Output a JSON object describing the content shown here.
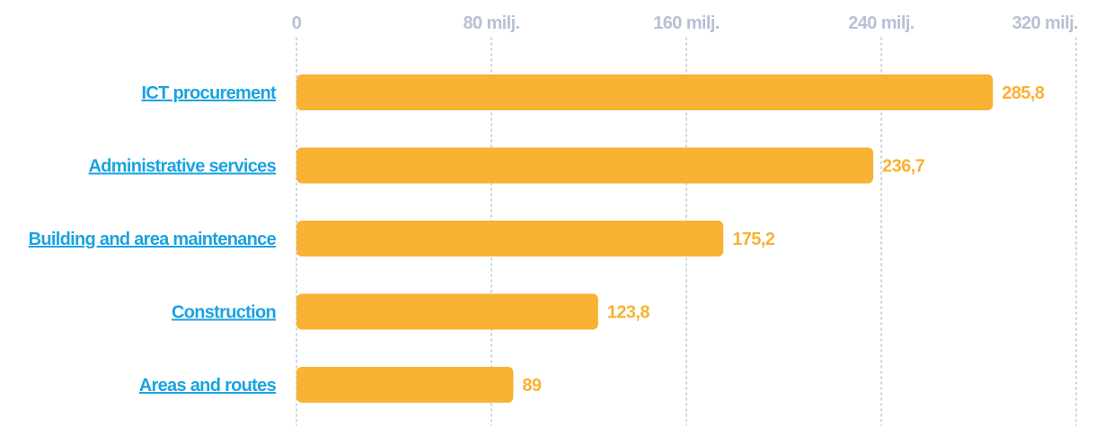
{
  "chart_data": {
    "type": "bar",
    "orientation": "horizontal",
    "categories": [
      "ICT procurement",
      "Administrative services",
      "Building and area maintenance",
      "Construction",
      "Areas and routes"
    ],
    "values": [
      285.8,
      236.7,
      175.2,
      123.8,
      89
    ],
    "value_labels": [
      "285,8",
      "236,7",
      "175,2",
      "123,8",
      "89"
    ],
    "xlim": [
      0,
      320
    ],
    "x_ticks": [
      0,
      80,
      160,
      240,
      320
    ],
    "x_tick_labels": [
      "0",
      "80 milj.",
      "160 milj.",
      "240 milj.",
      "320 milj."
    ],
    "x_axis_position": "top",
    "grid": "vertical-dotted",
    "title": "",
    "xlabel": "",
    "ylabel": ""
  },
  "colors": {
    "bar": "#f9b233",
    "value_label": "#f9b233",
    "category_link": "#1aa3e0",
    "tick_label": "#b8c0d4",
    "grid": "#bcc5d6"
  }
}
